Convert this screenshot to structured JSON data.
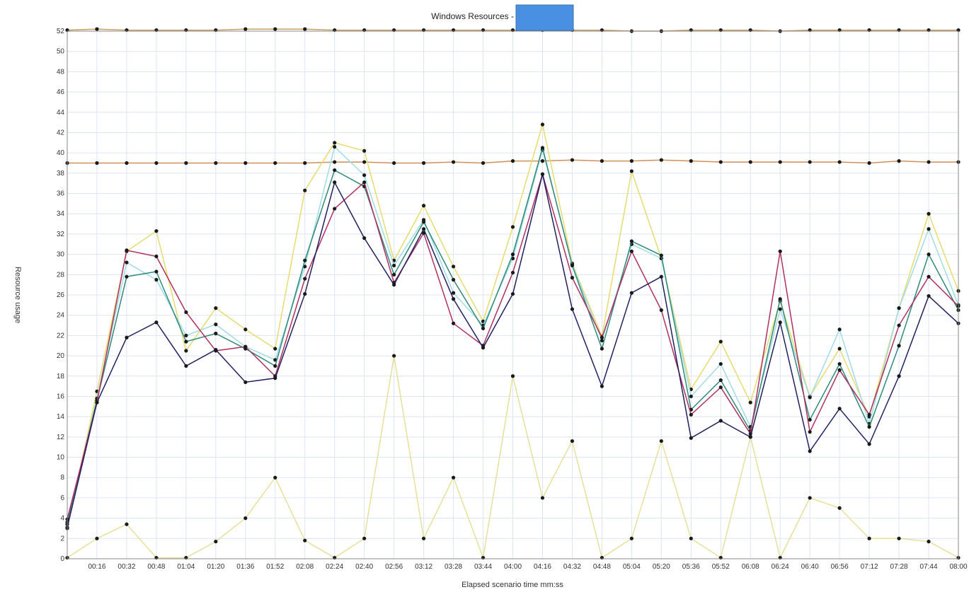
{
  "chart_data": {
    "type": "line",
    "title": "Windows Resources -",
    "xlabel": "Elapsed scenario time mm:ss",
    "ylabel": "Resource usage",
    "ylim": [
      0,
      52
    ],
    "y_ticks": [
      0,
      2,
      4,
      6,
      8,
      10,
      12,
      14,
      16,
      18,
      20,
      22,
      24,
      26,
      28,
      30,
      32,
      34,
      36,
      38,
      40,
      42,
      44,
      46,
      48,
      50,
      52
    ],
    "x_ticks": [
      "",
      "00:16",
      "00:32",
      "00:48",
      "01:04",
      "01:20",
      "01:36",
      "01:52",
      "02:08",
      "02:24",
      "02:40",
      "02:56",
      "03:12",
      "03:28",
      "03:44",
      "04:00",
      "04:16",
      "04:32",
      "04:48",
      "05:04",
      "05:20",
      "05:36",
      "05:52",
      "06:08",
      "06:24",
      "06:40",
      "06:56",
      "07:12",
      "07:28",
      "07:44",
      "08:00"
    ],
    "grid": true,
    "legend_box_color": "#4a90e2",
    "series": [
      {
        "color": "#c8a060",
        "values": [
          52.1,
          52.2,
          52.1,
          52.1,
          52.1,
          52.1,
          52.2,
          52.2,
          52.2,
          52.1,
          52.1,
          52.1,
          52.1,
          52.1,
          52.1,
          52.1,
          52.1,
          52.1,
          52.1,
          52.0,
          52.0,
          52.1,
          52.1,
          52.1,
          52.0,
          52.1,
          52.1,
          52.1,
          52.1,
          52.1,
          52.1
        ]
      },
      {
        "color": "#d0905a",
        "values": [
          39.0,
          39.0,
          39.0,
          39.0,
          39.0,
          39.0,
          39.0,
          39.0,
          39.0,
          39.1,
          39.1,
          39.0,
          39.0,
          39.1,
          39.0,
          39.2,
          39.2,
          39.3,
          39.2,
          39.2,
          39.3,
          39.2,
          39.1,
          39.1,
          39.1,
          39.1,
          39.1,
          39.0,
          39.2,
          39.1,
          39.1
        ]
      },
      {
        "color": "#e6dc6e",
        "values": [
          3.0,
          16.5,
          30.3,
          32.3,
          20.5,
          24.7,
          22.6,
          20.7,
          36.3,
          41.0,
          40.2,
          29.4,
          34.8,
          28.8,
          23.4,
          32.7,
          42.8,
          29.1,
          21.9,
          38.2,
          29.6,
          16.7,
          21.4,
          15.4,
          25.4,
          16.0,
          20.7,
          14.0,
          24.7,
          34.0,
          26.4
        ]
      },
      {
        "color": "#a0dce6",
        "values": [
          3.4,
          15.8,
          29.2,
          27.5,
          22.0,
          23.1,
          20.9,
          19.6,
          28.8,
          40.6,
          37.8,
          28.9,
          33.4,
          26.2,
          23.0,
          29.6,
          40.3,
          29.0,
          21.5,
          31.0,
          29.6,
          16.0,
          19.2,
          13.0,
          24.6,
          15.9,
          22.6,
          13.3,
          24.7,
          32.5,
          25.0
        ]
      },
      {
        "color": "#2e8b7a",
        "values": [
          3.6,
          15.6,
          27.8,
          28.3,
          21.4,
          22.2,
          20.7,
          19.0,
          29.4,
          38.3,
          36.7,
          28.0,
          33.2,
          27.5,
          22.7,
          30.0,
          40.5,
          28.9,
          20.7,
          31.3,
          29.9,
          14.7,
          17.6,
          12.6,
          25.6,
          13.7,
          19.2,
          13.0,
          21.0,
          30.0,
          24.5
        ]
      },
      {
        "color": "#b03060",
        "values": [
          3.9,
          15.4,
          30.4,
          29.8,
          24.3,
          20.5,
          20.9,
          18.0,
          27.6,
          34.5,
          37.1,
          27.2,
          32.1,
          23.2,
          21.0,
          28.2,
          37.9,
          27.7,
          21.8,
          30.3,
          24.5,
          14.2,
          16.9,
          12.3,
          30.3,
          12.5,
          18.6,
          14.2,
          23.0,
          27.8,
          24.9
        ]
      },
      {
        "color": "#202060",
        "values": [
          3.1,
          15.4,
          21.8,
          23.3,
          19.0,
          20.6,
          17.4,
          17.8,
          26.1,
          37.1,
          31.6,
          27.0,
          32.5,
          25.6,
          20.8,
          26.1,
          37.9,
          24.6,
          17.0,
          26.2,
          27.8,
          11.9,
          13.6,
          12.0,
          23.3,
          10.6,
          14.8,
          11.3,
          18.0,
          25.9,
          23.2
        ]
      },
      {
        "color": "#e6e09a",
        "values": [
          0.1,
          2.0,
          3.4,
          0.1,
          0.1,
          1.7,
          4.0,
          8.0,
          1.8,
          0.1,
          2.0,
          20.0,
          2.0,
          8.0,
          0.1,
          18.0,
          6.0,
          11.6,
          0.1,
          2.0,
          11.6,
          2.0,
          0.1,
          12.0,
          0.1,
          6.0,
          5.0,
          2.0,
          2.0,
          1.7,
          0.1
        ]
      }
    ]
  }
}
